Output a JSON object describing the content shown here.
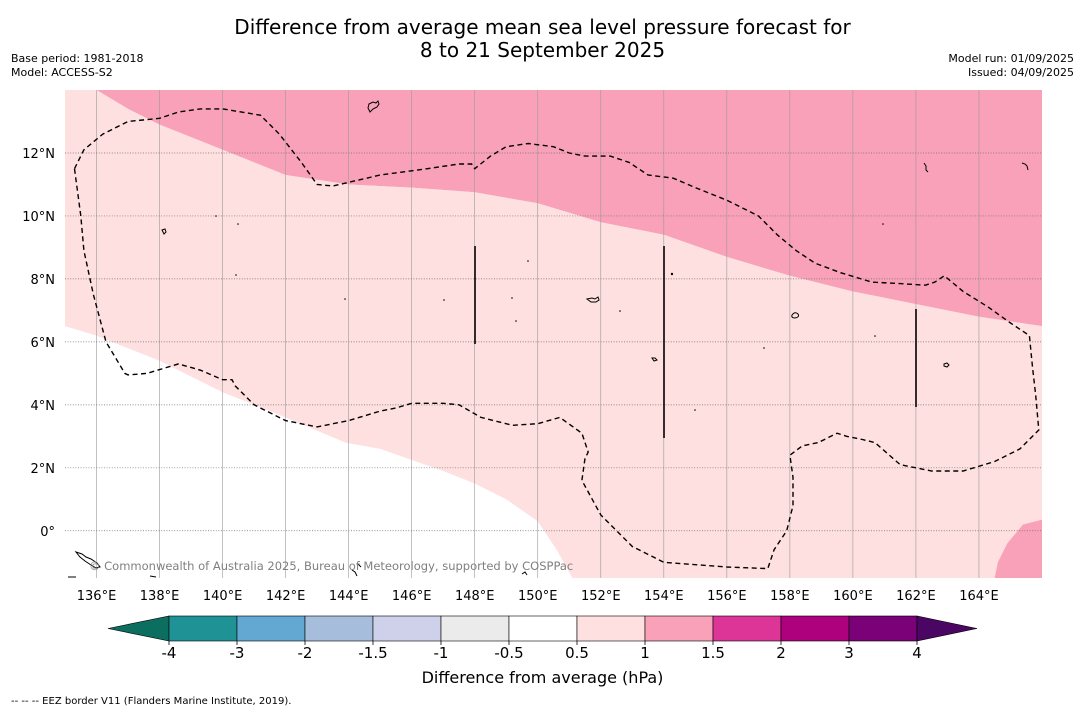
{
  "title": {
    "line1": "Difference from average mean sea level pressure forecast for",
    "line2": "8 to 21 September 2025"
  },
  "meta_left": {
    "base_period": "Base period: 1981-2018",
    "model": "Model: ACCESS-S2"
  },
  "meta_right": {
    "model_run": "Model run: 01/09/2025",
    "issued": "Issued: 04/09/2025"
  },
  "map": {
    "lon_range": [
      135.0,
      166.0
    ],
    "lat_range": [
      -1.5,
      14.0
    ],
    "lon_ticks": [
      {
        "value": 136,
        "label": "136°E"
      },
      {
        "value": 138,
        "label": "138°E"
      },
      {
        "value": 140,
        "label": "140°E"
      },
      {
        "value": 142,
        "label": "142°E"
      },
      {
        "value": 144,
        "label": "144°E"
      },
      {
        "value": 146,
        "label": "146°E"
      },
      {
        "value": 148,
        "label": "148°E"
      },
      {
        "value": 150,
        "label": "150°E"
      },
      {
        "value": 152,
        "label": "152°E"
      },
      {
        "value": 154,
        "label": "154°E"
      },
      {
        "value": 156,
        "label": "156°E"
      },
      {
        "value": 158,
        "label": "158°E"
      },
      {
        "value": 160,
        "label": "160°E"
      },
      {
        "value": 162,
        "label": "162°E"
      },
      {
        "value": 164,
        "label": "164°E"
      }
    ],
    "lat_ticks": [
      {
        "value": 0,
        "label": "0°"
      },
      {
        "value": 2,
        "label": "2°N"
      },
      {
        "value": 4,
        "label": "4°N"
      },
      {
        "value": 6,
        "label": "6°N"
      },
      {
        "value": 8,
        "label": "8°N"
      },
      {
        "value": 10,
        "label": "10°N"
      },
      {
        "value": 12,
        "label": "12°N"
      }
    ],
    "copyright": "© Commonwealth of Australia 2025, Bureau of Meteorology, supported by COSPPac",
    "colors": {
      "band_0.5_1": "#fde0df",
      "band_1_1.5": "#f9a1b8",
      "background": "#ffffff"
    },
    "regions": [
      {
        "band": "1-1.5",
        "color": "#f9a1b8",
        "polygon": [
          [
            136.0,
            14.0
          ],
          [
            137.0,
            13.4
          ],
          [
            138.0,
            12.9
          ],
          [
            140.0,
            12.1
          ],
          [
            142.0,
            11.3
          ],
          [
            144.0,
            11.0
          ],
          [
            146.0,
            10.9
          ],
          [
            148.0,
            10.75
          ],
          [
            150.0,
            10.4
          ],
          [
            152.0,
            9.8
          ],
          [
            154.0,
            9.4
          ],
          [
            156.0,
            8.7
          ],
          [
            158.0,
            8.1
          ],
          [
            160.0,
            7.6
          ],
          [
            162.0,
            7.2
          ],
          [
            164.0,
            6.8
          ],
          [
            166.0,
            6.5
          ],
          [
            166.0,
            14.0
          ]
        ]
      },
      {
        "band": "0.5-1",
        "color": "#fde0df",
        "polygon": [
          [
            135.0,
            14.0
          ],
          [
            136.0,
            14.0
          ],
          [
            137.0,
            13.4
          ],
          [
            138.0,
            12.9
          ],
          [
            140.0,
            12.1
          ],
          [
            142.0,
            11.3
          ],
          [
            144.0,
            11.0
          ],
          [
            146.0,
            10.9
          ],
          [
            148.0,
            10.75
          ],
          [
            150.0,
            10.4
          ],
          [
            152.0,
            9.8
          ],
          [
            154.0,
            9.4
          ],
          [
            156.0,
            8.7
          ],
          [
            158.0,
            8.1
          ],
          [
            160.0,
            7.6
          ],
          [
            162.0,
            7.2
          ],
          [
            164.0,
            6.8
          ],
          [
            166.0,
            6.5
          ],
          [
            166.0,
            -1.5
          ],
          [
            151.1,
            -1.5
          ],
          [
            150.6,
            -0.6
          ],
          [
            150.0,
            0.3
          ],
          [
            149.0,
            1.0
          ],
          [
            148.0,
            1.5
          ],
          [
            147.0,
            1.9
          ],
          [
            145.0,
            2.6
          ],
          [
            143.9,
            2.8
          ],
          [
            142.0,
            3.6
          ],
          [
            140.0,
            4.4
          ],
          [
            138.0,
            5.4
          ],
          [
            136.0,
            6.2
          ],
          [
            135.0,
            6.5
          ]
        ]
      },
      {
        "band": "1-1.5",
        "color": "#f9a1b8",
        "polygon": [
          [
            166.0,
            0.35
          ],
          [
            165.4,
            0.2
          ],
          [
            164.9,
            -0.4
          ],
          [
            164.6,
            -1.0
          ],
          [
            164.5,
            -1.5
          ],
          [
            166.0,
            -1.5
          ]
        ]
      }
    ],
    "eez_dashed_loop": [
      [
        135.3,
        11.5
      ],
      [
        135.6,
        12.1
      ],
      [
        136.2,
        12.6
      ],
      [
        137.0,
        13.0
      ],
      [
        138.0,
        13.1
      ],
      [
        138.6,
        13.3
      ],
      [
        139.3,
        13.4
      ],
      [
        140.0,
        13.4
      ],
      [
        141.2,
        13.2
      ],
      [
        141.8,
        12.6
      ],
      [
        142.5,
        11.7
      ],
      [
        143.0,
        11.0
      ],
      [
        143.5,
        10.95
      ],
      [
        145.0,
        11.3
      ],
      [
        146.5,
        11.5
      ],
      [
        147.5,
        11.65
      ],
      [
        147.9,
        11.65
      ],
      [
        148.0,
        11.5
      ],
      [
        148.5,
        11.9
      ],
      [
        149.0,
        12.2
      ],
      [
        149.7,
        12.3
      ],
      [
        150.5,
        12.2
      ],
      [
        151.0,
        12.0
      ],
      [
        151.5,
        11.9
      ],
      [
        152.3,
        11.9
      ],
      [
        152.9,
        11.7
      ],
      [
        153.5,
        11.3
      ],
      [
        154.3,
        11.2
      ],
      [
        155.0,
        10.9
      ],
      [
        156.0,
        10.5
      ],
      [
        157.0,
        10.0
      ],
      [
        157.6,
        9.4
      ],
      [
        158.2,
        8.9
      ],
      [
        158.8,
        8.5
      ],
      [
        159.6,
        8.2
      ],
      [
        160.6,
        7.9
      ],
      [
        161.5,
        7.85
      ],
      [
        162.3,
        7.8
      ],
      [
        162.6,
        7.9
      ],
      [
        162.9,
        8.1
      ],
      [
        163.5,
        7.6
      ],
      [
        164.3,
        7.1
      ],
      [
        165.0,
        6.6
      ],
      [
        165.6,
        6.2
      ],
      [
        165.7,
        5.2
      ],
      [
        165.8,
        4.3
      ],
      [
        165.9,
        3.2
      ],
      [
        165.3,
        2.6
      ],
      [
        164.5,
        2.2
      ],
      [
        163.5,
        1.9
      ],
      [
        162.5,
        1.9
      ],
      [
        161.5,
        2.1
      ],
      [
        160.7,
        2.8
      ],
      [
        160.3,
        2.9
      ],
      [
        159.8,
        3.0
      ],
      [
        159.5,
        3.1
      ],
      [
        158.9,
        2.8
      ],
      [
        158.4,
        2.7
      ],
      [
        158.0,
        2.4
      ],
      [
        158.1,
        1.7
      ],
      [
        158.1,
        0.8
      ],
      [
        157.9,
        0.0
      ],
      [
        157.5,
        -0.6
      ],
      [
        157.3,
        -1.2
      ],
      [
        156.0,
        -1.15
      ],
      [
        154.0,
        -1.0
      ],
      [
        153.0,
        -0.5
      ],
      [
        152.0,
        0.5
      ],
      [
        151.4,
        1.6
      ],
      [
        151.5,
        2.3
      ],
      [
        151.6,
        2.5
      ],
      [
        151.4,
        3.1
      ],
      [
        150.7,
        3.6
      ],
      [
        150.0,
        3.4
      ],
      [
        149.2,
        3.35
      ],
      [
        148.2,
        3.6
      ],
      [
        147.5,
        4.0
      ],
      [
        147.0,
        4.05
      ],
      [
        146.0,
        4.05
      ],
      [
        145.5,
        3.9
      ],
      [
        145.0,
        3.8
      ],
      [
        144.0,
        3.5
      ],
      [
        143.0,
        3.3
      ],
      [
        142.0,
        3.5
      ],
      [
        141.0,
        4.0
      ],
      [
        140.4,
        4.6
      ],
      [
        140.3,
        4.8
      ],
      [
        140.0,
        4.8
      ],
      [
        139.3,
        5.1
      ],
      [
        138.6,
        5.3
      ],
      [
        137.6,
        5.0
      ],
      [
        137.0,
        4.95
      ],
      [
        136.9,
        5.0
      ],
      [
        136.3,
        6.0
      ],
      [
        135.9,
        7.5
      ],
      [
        135.6,
        8.9
      ],
      [
        135.5,
        10.0
      ],
      [
        135.3,
        11.5
      ]
    ]
  },
  "colorbar": {
    "label": "Difference from average (hPa)",
    "tick_labels": [
      "-4",
      "-3",
      "-2",
      "-1.5",
      "-1",
      "-0.5",
      "0.5",
      "1",
      "1.5",
      "2",
      "3",
      "4"
    ],
    "low_extend_color": "#0b6e5e",
    "high_extend_color": "#4b0563",
    "colors": [
      "#1e9294",
      "#62a8d2",
      "#a6bedb",
      "#cfd0e9",
      "#ebebeb",
      "#ffffff",
      "#fde0df",
      "#f9a1b8",
      "#dd3497",
      "#ae017e",
      "#7a0177"
    ]
  },
  "footer": "--  --  -- EEZ border V11 (Flanders Marine Institute, 2019)."
}
